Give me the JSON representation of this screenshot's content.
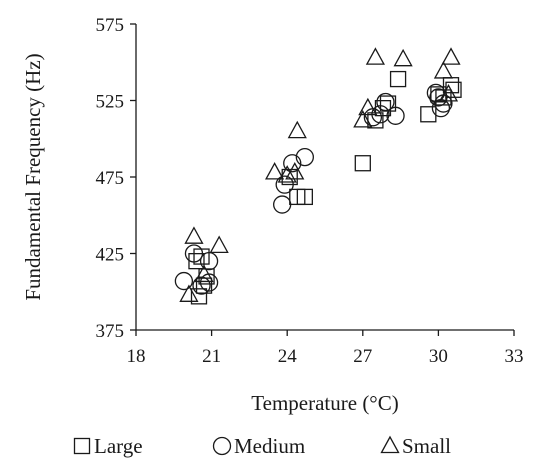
{
  "chart_data": {
    "type": "scatter",
    "title": "",
    "xlabel": "Temperature (°C)",
    "ylabel": "Fundamental Frequency (Hz)",
    "xlim": [
      18,
      33
    ],
    "ylim": [
      375,
      575
    ],
    "xticks": [
      "18",
      "21",
      "24",
      "27",
      "30",
      "33"
    ],
    "yticks": [
      "375",
      "425",
      "475",
      "525",
      "575"
    ],
    "grid": false,
    "legend_position": "bottom",
    "marker_color": "#1a1a1a",
    "series": [
      {
        "name": "Large",
        "marker": "square",
        "points": [
          [
            20.4,
            420
          ],
          [
            20.5,
            397
          ],
          [
            20.6,
            423
          ],
          [
            20.7,
            404
          ],
          [
            20.8,
            410
          ],
          [
            24.1,
            475
          ],
          [
            24.4,
            462
          ],
          [
            24.7,
            462
          ],
          [
            27.0,
            484
          ],
          [
            27.5,
            512
          ],
          [
            27.8,
            520
          ],
          [
            28.0,
            523
          ],
          [
            28.4,
            539
          ],
          [
            29.6,
            516
          ],
          [
            30.0,
            529
          ],
          [
            30.2,
            527
          ],
          [
            30.5,
            535
          ],
          [
            30.6,
            532
          ]
        ]
      },
      {
        "name": "Medium",
        "marker": "circle",
        "points": [
          [
            19.9,
            407
          ],
          [
            20.3,
            425
          ],
          [
            20.6,
            404
          ],
          [
            20.9,
            406
          ],
          [
            20.9,
            420
          ],
          [
            23.8,
            457
          ],
          [
            23.9,
            470
          ],
          [
            24.2,
            484
          ],
          [
            24.7,
            488
          ],
          [
            27.4,
            514
          ],
          [
            27.7,
            516
          ],
          [
            27.9,
            524
          ],
          [
            28.3,
            515
          ],
          [
            29.9,
            530
          ],
          [
            30.0,
            527
          ],
          [
            30.1,
            520
          ],
          [
            30.2,
            523
          ]
        ]
      },
      {
        "name": "Small",
        "marker": "triangle",
        "points": [
          [
            20.1,
            398
          ],
          [
            20.3,
            436
          ],
          [
            20.7,
            411
          ],
          [
            21.3,
            430
          ],
          [
            23.5,
            478
          ],
          [
            24.0,
            476
          ],
          [
            24.3,
            478
          ],
          [
            24.4,
            505
          ],
          [
            27.0,
            512
          ],
          [
            27.2,
            520
          ],
          [
            27.5,
            553
          ],
          [
            28.6,
            552
          ],
          [
            30.2,
            544
          ],
          [
            30.4,
            529
          ],
          [
            30.5,
            553
          ]
        ]
      }
    ]
  }
}
